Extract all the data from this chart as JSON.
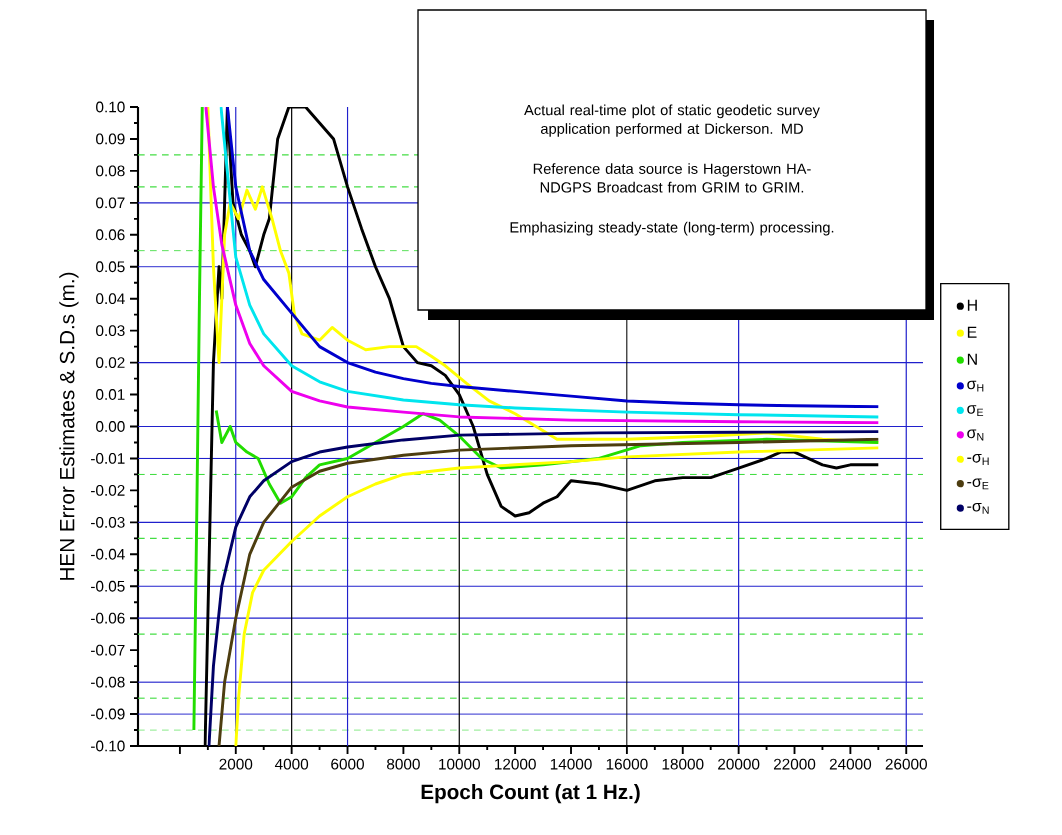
{
  "chart_data": {
    "type": "line",
    "xlabel": "**Epoch Count (at 1 Hz.)**",
    "ylabel": "HEN Error Estimates & S.D.s (m.)",
    "annotations": [
      "Actual real-time plot of static geodetic survey application performed at Dickerson. MD",
      "Reference data source is Hagerstown HA-NDGPS Broadcast from GRIM to GRIM.",
      "Emphasizing steady-state (long-term) processing."
    ],
    "xlim": [
      -1500,
      26600
    ],
    "ylim": [
      -0.1,
      0.1
    ],
    "xticks": [
      {
        "value": 0,
        "label": null
      },
      2000,
      4000,
      6000,
      8000,
      10000,
      12000,
      14000,
      16000,
      18000,
      20000,
      22000,
      24000,
      26000
    ],
    "yticks": [
      {
        "value": -0.1,
        "label": "-0.10"
      },
      {
        "value": -0.09,
        "label": "-0.09"
      },
      {
        "value": -0.08,
        "label": "-0.08"
      },
      {
        "value": -0.07,
        "label": "-0.07"
      },
      {
        "value": -0.06,
        "label": "-0.06"
      },
      {
        "value": -0.05,
        "label": "-0.05"
      },
      {
        "value": -0.04,
        "label": "-0.04"
      },
      {
        "value": -0.03,
        "label": "-0.03"
      },
      {
        "value": -0.02,
        "label": "-0.02"
      },
      {
        "value": -0.01,
        "label": "-0.01"
      },
      {
        "value": 0,
        "label": "0.00"
      },
      {
        "value": 0.01,
        "label": "0.01"
      },
      {
        "value": 0.02,
        "label": "0.02"
      },
      {
        "value": 0.03,
        "label": "0.03"
      },
      {
        "value": 0.04,
        "label": "0.04"
      },
      {
        "value": 0.05,
        "label": "0.05"
      },
      {
        "value": 0.06,
        "label": "0.06"
      },
      {
        "value": 0.07,
        "label": "0.07"
      },
      {
        "value": 0.08,
        "label": "0.08"
      },
      {
        "value": 0.09,
        "label": "0.09"
      },
      {
        "value": 0.1,
        "label": "0.10"
      }
    ],
    "legend": "right",
    "ref_lines": [
      {
        "axis": "y",
        "value": 0.07,
        "color": "#2020cc"
      },
      {
        "axis": "y",
        "value": 0.05,
        "color": "#2020cc"
      },
      {
        "axis": "y",
        "value": 0.02,
        "color": "#2020cc"
      },
      {
        "axis": "y",
        "value": 0,
        "color": "#2020cc"
      },
      {
        "axis": "y",
        "value": -0.01,
        "color": "#2020cc"
      },
      {
        "axis": "y",
        "value": -0.03,
        "color": "#2020cc"
      },
      {
        "axis": "y",
        "value": -0.05,
        "color": "#2020cc"
      },
      {
        "axis": "y",
        "value": -0.06,
        "color": "#2020cc"
      },
      {
        "axis": "y",
        "value": -0.08,
        "color": "#2020cc"
      },
      {
        "axis": "y",
        "value": -0.09,
        "color": "#2020cc"
      },
      {
        "axis": "y",
        "value": 0.085,
        "color": "#44dd44",
        "line_style": "dashed"
      },
      {
        "axis": "y",
        "value": 0.075,
        "color": "#44dd44",
        "line_style": "dashed"
      },
      {
        "axis": "y",
        "value": 0.055,
        "color": "#44dd44",
        "line_style": "dashed"
      },
      {
        "axis": "y",
        "value": -0.015,
        "color": "#44dd44",
        "line_style": "dashed"
      },
      {
        "axis": "y",
        "value": -0.035,
        "color": "#44dd44",
        "line_style": "dashed"
      },
      {
        "axis": "y",
        "value": -0.045,
        "color": "#44dd44",
        "line_style": "dashed"
      },
      {
        "axis": "y",
        "value": -0.065,
        "color": "#44dd44",
        "line_style": "dashed"
      },
      {
        "axis": "y",
        "value": -0.085,
        "color": "#44dd44",
        "line_style": "dashed"
      },
      {
        "axis": "y",
        "value": -0.095,
        "color": "#44dd44",
        "line_style": "dashed"
      },
      {
        "axis": "x",
        "value": 2000,
        "color": "#2020cc"
      },
      {
        "axis": "x",
        "value": 4000,
        "color": "#000000"
      },
      {
        "axis": "x",
        "value": 6000,
        "color": "#2020cc"
      },
      {
        "axis": "x",
        "value": 10000,
        "color": "#000000"
      },
      {
        "axis": "x",
        "value": 16000,
        "color": "#000000"
      },
      {
        "axis": "x",
        "value": 20000,
        "color": "#2020cc"
      },
      {
        "axis": "x",
        "value": 26000,
        "color": "#2020cc"
      }
    ],
    "series": [
      {
        "name": "H",
        "color": "#000000",
        "x": [
          900,
          1100,
          1200,
          1400,
          1500,
          1700,
          1900,
          2200,
          2500,
          2700,
          3000,
          3200,
          3500,
          3700,
          3900,
          4500,
          5000,
          5500,
          6000,
          6500,
          7000,
          7500,
          8000,
          8500,
          9000,
          9500,
          10000,
          10500,
          11000,
          11500,
          12000,
          12500,
          13000,
          13500,
          14000,
          15000,
          16000,
          17000,
          18000,
          19000,
          20000,
          21000,
          21500,
          22000,
          23000,
          23500,
          24000,
          25000
        ],
        "values": [
          -0.1,
          -0.02,
          0.02,
          0.05,
          0.04,
          0.1,
          0.07,
          0.06,
          0.055,
          0.05,
          0.06,
          0.065,
          0.09,
          0.095,
          0.1,
          0.1,
          0.095,
          0.09,
          0.075,
          0.062,
          0.05,
          0.04,
          0.025,
          0.02,
          0.019,
          0.016,
          0.01,
          0.0,
          -0.015,
          -0.025,
          -0.028,
          -0.027,
          -0.024,
          -0.022,
          -0.017,
          -0.018,
          -0.02,
          -0.017,
          -0.016,
          -0.016,
          -0.013,
          -0.01,
          -0.008,
          -0.008,
          -0.012,
          -0.013,
          -0.012,
          -0.012
        ]
      },
      {
        "name": "E",
        "color": "#ffff00",
        "x": [
          1000,
          1200,
          1400,
          1600,
          1800,
          2100,
          2400,
          2700,
          2950,
          3300,
          3600,
          3900,
          4100,
          4370,
          5000,
          5450,
          6000,
          6650,
          7500,
          8460,
          9000,
          9500,
          10250,
          11070,
          12000,
          13500,
          16000,
          19000,
          21000,
          23000,
          25000
        ],
        "values": [
          0.1,
          0.05,
          0.02,
          0.06,
          0.07,
          0.065,
          0.074,
          0.068,
          0.075,
          0.065,
          0.055,
          0.048,
          0.035,
          0.029,
          0.027,
          0.031,
          0.027,
          0.024,
          0.025,
          0.025,
          0.022,
          0.019,
          0.0136,
          0.008,
          0.004,
          -0.004,
          -0.004,
          -0.003,
          -0.002,
          -0.004,
          -0.005
        ]
      },
      {
        "name": "N",
        "color": "#22dd00",
        "x": [
          500,
          600,
          700,
          800,
          1100,
          1300,
          1500,
          1800,
          2000,
          2400,
          2800,
          3200,
          3600,
          4000,
          4500,
          5000,
          6000,
          7000,
          8000,
          8700,
          9300,
          10000,
          10800,
          11500,
          13000,
          15000,
          16500,
          18000,
          21000,
          25000
        ],
        "values": [
          -0.095,
          -0.03,
          0.04,
          0.1,
          null,
          0.005,
          -0.005,
          0.0,
          -0.005,
          -0.008,
          -0.01,
          -0.018,
          -0.024,
          -0.022,
          -0.016,
          -0.012,
          -0.01,
          -0.005,
          0.0,
          0.004,
          0.002,
          -0.003,
          -0.01,
          -0.013,
          -0.012,
          -0.01,
          -0.006,
          -0.005,
          -0.004,
          -0.005
        ]
      },
      {
        "name": "σ$_{H}$",
        "color": "#0000cc",
        "x": [
          1700,
          2000,
          2500,
          3000,
          4000,
          5000,
          6000,
          7000,
          8000,
          9000,
          10000,
          12000,
          14000,
          16000,
          18000,
          20000,
          22000,
          25000
        ],
        "values": [
          0.1,
          0.075,
          0.055,
          0.046,
          0.0355,
          0.025,
          0.02,
          0.017,
          0.015,
          0.0135,
          0.0125,
          0.011,
          0.0095,
          0.008,
          0.0073,
          0.0068,
          0.0065,
          0.0062
        ]
      },
      {
        "name": "σ$_{E}$",
        "color": "#00e5ee",
        "x": [
          1470,
          2000,
          2500,
          3000,
          4000,
          5000,
          6000,
          8000,
          10000,
          12000,
          16000,
          20000,
          25000
        ],
        "values": [
          0.1,
          0.053,
          0.038,
          0.029,
          0.019,
          0.014,
          0.011,
          0.0083,
          0.0068,
          0.0058,
          0.0045,
          0.0037,
          0.003
        ]
      },
      {
        "name": "σ$_{N}$",
        "color": "#ee00ee",
        "x": [
          930,
          1200,
          1500,
          2000,
          2500,
          3000,
          4000,
          5000,
          6000,
          8000,
          10000,
          14000,
          20000,
          25000
        ],
        "values": [
          0.1,
          0.075,
          0.057,
          0.038,
          0.026,
          0.019,
          0.011,
          0.008,
          0.0061,
          0.0045,
          0.003,
          0.002,
          0.0015,
          0.0012
        ]
      },
      {
        "name": "-σ$_{H}$",
        "color": "#ffff00",
        "x": [
          2000,
          2100,
          2300,
          2600,
          3000,
          4000,
          5000,
          6000,
          7000,
          8000,
          10000,
          12000,
          14000,
          16000,
          20000,
          25000
        ],
        "values": [
          -0.1,
          -0.085,
          -0.065,
          -0.052,
          -0.045,
          -0.036,
          -0.028,
          -0.022,
          -0.018,
          -0.015,
          -0.013,
          -0.012,
          -0.011,
          -0.0095,
          -0.008,
          -0.0067
        ]
      },
      {
        "name": "-σ$_{E}$",
        "color": "#4d3d10",
        "x": [
          1400,
          1600,
          2000,
          2500,
          3000,
          4000,
          5000,
          6000,
          8000,
          10000,
          14000,
          20000,
          25000
        ],
        "values": [
          -0.1,
          -0.08,
          -0.06,
          -0.04,
          -0.03,
          -0.019,
          -0.014,
          -0.0115,
          -0.009,
          -0.0074,
          -0.006,
          -0.005,
          -0.004
        ]
      },
      {
        "name": "-σ$_{N}$",
        "color": "#000066",
        "x": [
          1040,
          1200,
          1500,
          2000,
          2500,
          3000,
          4000,
          5000,
          6000,
          8000,
          10000,
          15000,
          20000,
          25000
        ],
        "values": [
          -0.1,
          -0.075,
          -0.05,
          -0.0315,
          -0.022,
          -0.017,
          -0.011,
          -0.008,
          -0.0064,
          -0.0042,
          -0.0027,
          -0.002,
          -0.0018,
          -0.0016
        ]
      }
    ]
  }
}
